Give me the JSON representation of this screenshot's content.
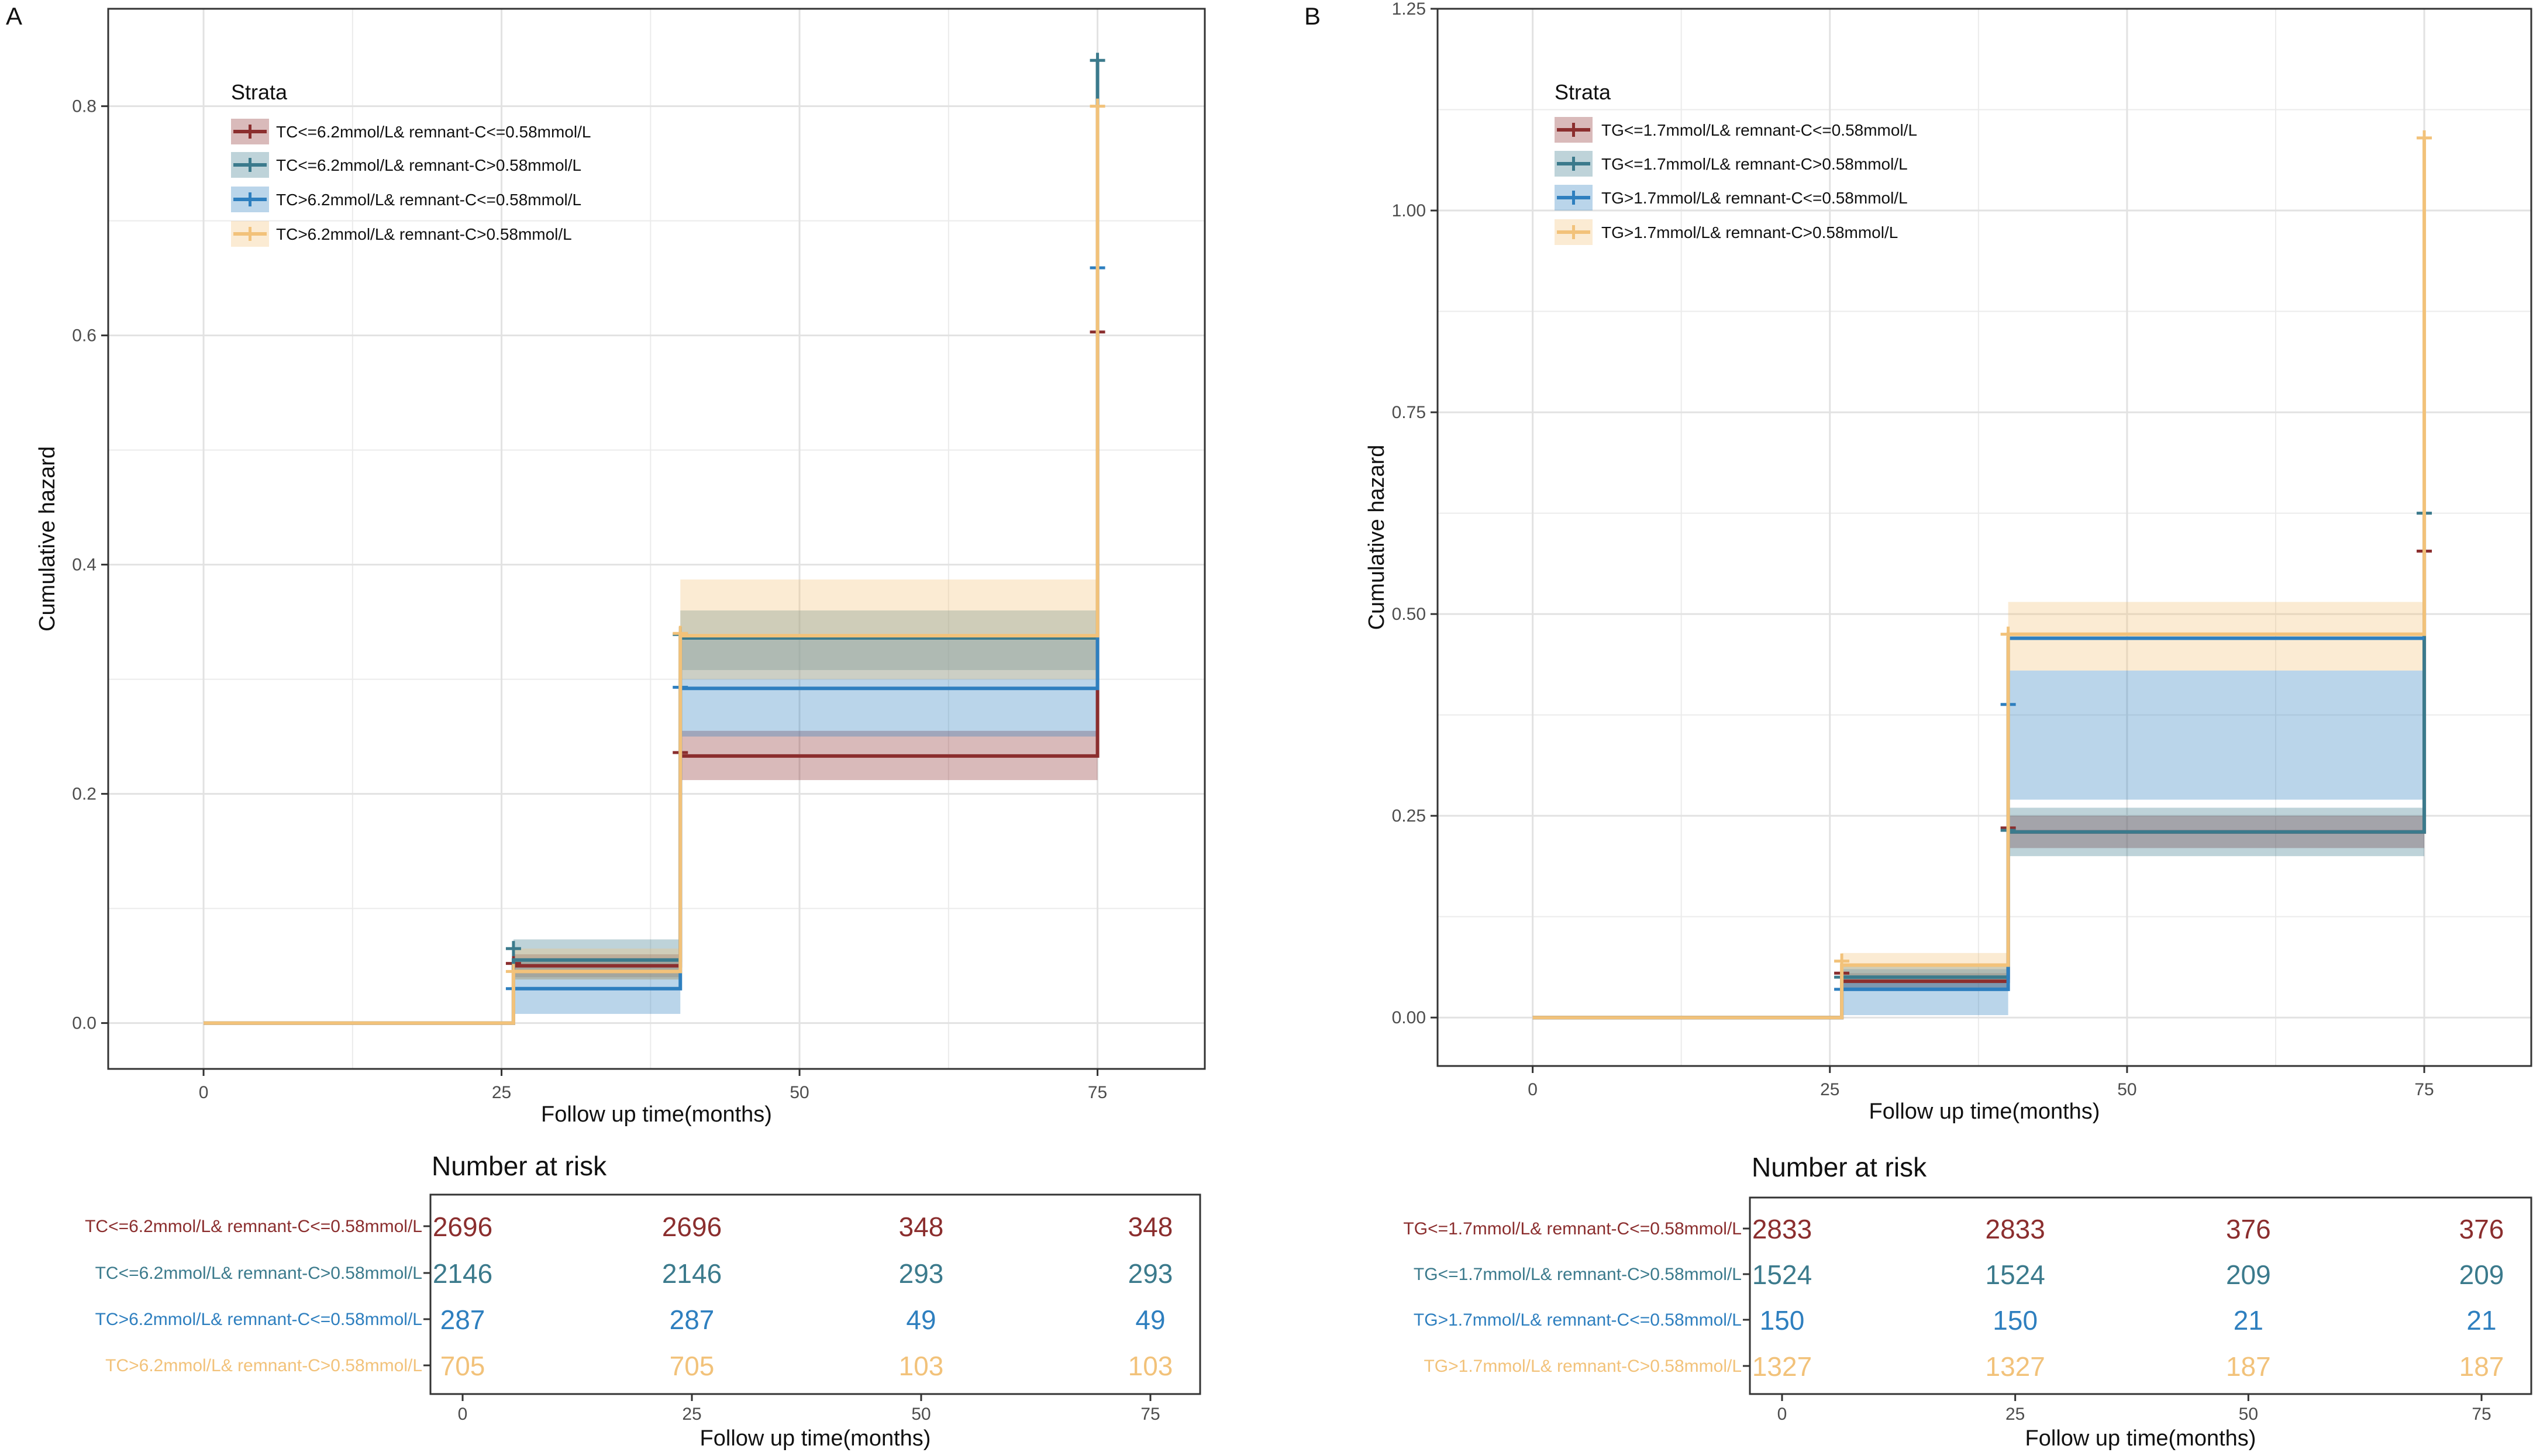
{
  "colors": {
    "s1": "#8B2E2E",
    "s2": "#3B7A8C",
    "s3": "#2E7FBF",
    "s4": "#F2C27A",
    "grid": "#ebebeb",
    "axis": "#333333"
  },
  "chart_data": [
    {
      "type": "line",
      "panel_label": "A",
      "title": "",
      "xlabel": "Follow up time(months)",
      "ylabel": "Cumulative hazard",
      "xlim": [
        -8,
        84
      ],
      "ylim": [
        -0.04,
        0.885
      ],
      "xticks": [
        0,
        25,
        50,
        75
      ],
      "yticks": [
        0.0,
        0.2,
        0.4,
        0.6,
        0.8
      ],
      "ytick_labels": [
        "0.0",
        "0.2",
        "0.4",
        "0.6",
        "0.8"
      ],
      "legend_title": "Strata",
      "series": [
        {
          "name": "TC<=6.2mmol/L& remnant-C<=0.58mmol/L",
          "color_key": "s1",
          "steps": [
            [
              0,
              0
            ],
            [
              26,
              0.05
            ],
            [
              40,
              0.233
            ],
            [
              75,
              0.603
            ]
          ],
          "band": [
            [
              0,
              0,
              0
            ],
            [
              26,
              0.04,
              0.06
            ],
            [
              40,
              0.212,
              0.255
            ],
            [
              75,
              0.212,
              0.255
            ]
          ],
          "censor": [
            [
              26,
              0.052
            ],
            [
              40,
              0.236
            ],
            [
              75,
              0.603
            ]
          ]
        },
        {
          "name": "TC<=6.2mmol/L& remnant-C>0.58mmol/L",
          "color_key": "s2",
          "steps": [
            [
              0,
              0
            ],
            [
              26,
              0.055
            ],
            [
              40,
              0.336
            ],
            [
              75,
              0.84
            ]
          ],
          "band": [
            [
              0,
              0,
              0
            ],
            [
              26,
              0.038,
              0.073
            ],
            [
              40,
              0.308,
              0.36
            ],
            [
              75,
              0.308,
              0.36
            ]
          ],
          "censor": [
            [
              26,
              0.065
            ],
            [
              40,
              0.339
            ],
            [
              75,
              0.84
            ]
          ]
        },
        {
          "name": "TC>6.2mmol/L& remnant-C<=0.58mmol/L",
          "color_key": "s3",
          "steps": [
            [
              0,
              0
            ],
            [
              26,
              0.03
            ],
            [
              40,
              0.292
            ],
            [
              75,
              0.659
            ]
          ],
          "band": [
            [
              0,
              0,
              0
            ],
            [
              26,
              0.008,
              0.055
            ],
            [
              40,
              0.25,
              0.335
            ],
            [
              75,
              0.25,
              0.335
            ]
          ],
          "censor": [
            [
              26,
              0.03
            ],
            [
              40,
              0.293
            ],
            [
              75,
              0.659
            ]
          ]
        },
        {
          "name": "TC>6.2mmol/L& remnant-C>0.58mmol/L",
          "color_key": "s4",
          "steps": [
            [
              0,
              0
            ],
            [
              26,
              0.045
            ],
            [
              40,
              0.338
            ],
            [
              75,
              0.8
            ]
          ],
          "band": [
            [
              0,
              0,
              0
            ],
            [
              26,
              0.038,
              0.065
            ],
            [
              40,
              0.3,
              0.387
            ],
            [
              75,
              0.3,
              0.387
            ]
          ],
          "censor": [
            [
              26,
              0.045
            ],
            [
              40,
              0.34
            ],
            [
              75,
              0.8
            ]
          ]
        }
      ],
      "risk_table": {
        "title": "Number at risk",
        "xlabel": "Follow up time(months)",
        "times": [
          0,
          25,
          50,
          75
        ],
        "rows": [
          {
            "label": "TC<=6.2mmol/L& remnant-C<=0.58mmol/L",
            "color_key": "s1",
            "values": [
              "2696",
              "2696",
              "348",
              "348"
            ]
          },
          {
            "label": "TC<=6.2mmol/L& remnant-C>0.58mmol/L",
            "color_key": "s2",
            "values": [
              "2146",
              "2146",
              "293",
              "293"
            ]
          },
          {
            "label": "TC>6.2mmol/L& remnant-C<=0.58mmol/L",
            "color_key": "s3",
            "values": [
              "287",
              "287",
              "49",
              "49"
            ]
          },
          {
            "label": "TC>6.2mmol/L& remnant-C>0.58mmol/L",
            "color_key": "s4",
            "values": [
              "705",
              "705",
              "103",
              "103"
            ]
          }
        ]
      }
    },
    {
      "type": "line",
      "panel_label": "B",
      "title": "",
      "xlabel": "Follow up time(months)",
      "ylabel": "Cumulative hazard",
      "xlim": [
        -8,
        84
      ],
      "ylim": [
        -0.06,
        1.25
      ],
      "xticks": [
        0,
        25,
        50,
        75
      ],
      "yticks": [
        0.0,
        0.25,
        0.5,
        0.75,
        1.0,
        1.25
      ],
      "ytick_labels": [
        "0.00",
        "0.25",
        "0.50",
        "0.75",
        "1.00",
        "1.25"
      ],
      "legend_title": "Strata",
      "series": [
        {
          "name": "TG<=1.7mmol/L& remnant-C<=0.58mmol/L",
          "color_key": "s1",
          "steps": [
            [
              0,
              0
            ],
            [
              26,
              0.045
            ],
            [
              40,
              0.23
            ],
            [
              75,
              0.578
            ]
          ],
          "band": [
            [
              0,
              0,
              0
            ],
            [
              26,
              0.035,
              0.055
            ],
            [
              40,
              0.21,
              0.25
            ],
            [
              75,
              0.21,
              0.25
            ]
          ],
          "censor": [
            [
              26,
              0.055
            ],
            [
              40,
              0.235
            ],
            [
              75,
              0.578
            ]
          ]
        },
        {
          "name": "TG<=1.7mmol/L& remnant-C>0.58mmol/L",
          "color_key": "s2",
          "steps": [
            [
              0,
              0
            ],
            [
              26,
              0.05
            ],
            [
              40,
              0.23
            ],
            [
              75,
              0.625
            ]
          ],
          "band": [
            [
              0,
              0,
              0
            ],
            [
              26,
              0.035,
              0.065
            ],
            [
              40,
              0.2,
              0.26
            ],
            [
              75,
              0.2,
              0.26
            ]
          ],
          "censor": [
            [
              26,
              0.05
            ],
            [
              40,
              0.232
            ],
            [
              75,
              0.625
            ]
          ]
        },
        {
          "name": "TG>1.7mmol/L& remnant-C<=0.58mmol/L",
          "color_key": "s3",
          "steps": [
            [
              0,
              0
            ],
            [
              26,
              0.035
            ],
            [
              40,
              0.47
            ],
            [
              75,
              0.47
            ]
          ],
          "band": [
            [
              0,
              0,
              0
            ],
            [
              26,
              0.003,
              0.06
            ],
            [
              40,
              0.27,
              0.43
            ],
            [
              75,
              0.27,
              0.43
            ]
          ],
          "censor": [
            [
              26,
              0.035
            ],
            [
              40,
              0.388
            ]
          ]
        },
        {
          "name": "TG>1.7mmol/L& remnant-C>0.58mmol/L",
          "color_key": "s4",
          "steps": [
            [
              0,
              0
            ],
            [
              26,
              0.065
            ],
            [
              40,
              0.475
            ],
            [
              75,
              1.09
            ]
          ],
          "band": [
            [
              0,
              0,
              0
            ],
            [
              26,
              0.045,
              0.08
            ],
            [
              40,
              0.43,
              0.515
            ],
            [
              75,
              0.43,
              0.515
            ]
          ],
          "censor": [
            [
              26,
              0.07
            ],
            [
              40,
              0.475
            ],
            [
              75,
              1.09
            ]
          ]
        }
      ],
      "risk_table": {
        "title": "Number at risk",
        "xlabel": "Follow up time(months)",
        "times": [
          0,
          25,
          50,
          75
        ],
        "rows": [
          {
            "label": "TG<=1.7mmol/L& remnant-C<=0.58mmol/L",
            "color_key": "s1",
            "values": [
              "2833",
              "2833",
              "376",
              "376"
            ]
          },
          {
            "label": "TG<=1.7mmol/L& remnant-C>0.58mmol/L",
            "color_key": "s2",
            "values": [
              "1524",
              "1524",
              "209",
              "209"
            ]
          },
          {
            "label": "TG>1.7mmol/L& remnant-C<=0.58mmol/L",
            "color_key": "s3",
            "values": [
              "150",
              "150",
              "21",
              "21"
            ]
          },
          {
            "label": "TG>1.7mmol/L& remnant-C>0.58mmol/L",
            "color_key": "s4",
            "values": [
              "1327",
              "1327",
              "187",
              "187"
            ]
          }
        ]
      }
    }
  ]
}
